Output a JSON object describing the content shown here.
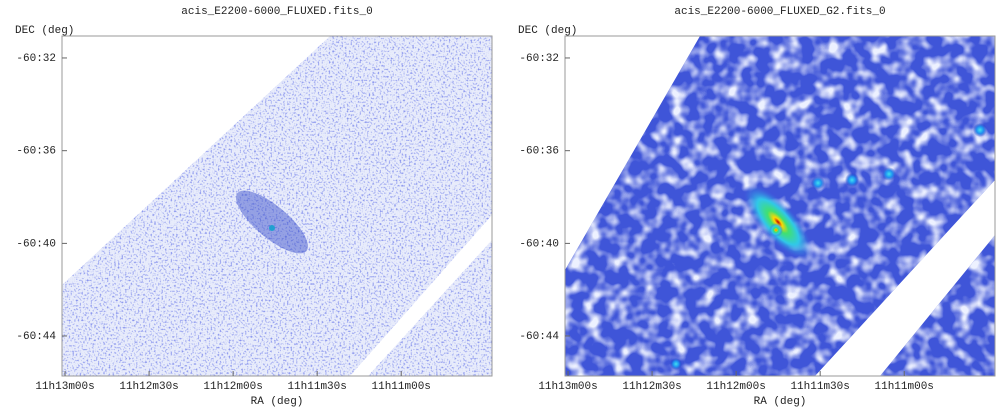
{
  "chart_data": [
    {
      "type": "image",
      "title": "acis_E2200-6000_FLUXED.fits_0",
      "xlabel": "RA (deg)",
      "ylabel": "DEC (deg)",
      "xlim": [
        168.2545,
        167.615
      ],
      "ylim": [
        -60.7621,
        -60.5175
      ],
      "xticks": [
        {
          "value": 168.25,
          "label": "11h13m00s"
        },
        {
          "value": 168.125,
          "label": "11h12m30s"
        },
        {
          "value": 168.0,
          "label": "11h12m00s"
        },
        {
          "value": 167.875,
          "label": "11h11m30s"
        },
        {
          "value": 167.75,
          "label": "11h11m00s"
        }
      ],
      "yticks": [
        {
          "value": -60.5333,
          "label": "-60:32"
        },
        {
          "value": -60.6,
          "label": "-60:36"
        },
        {
          "value": -60.6667,
          "label": "-60:40"
        },
        {
          "value": -60.7333,
          "label": "-60:44"
        }
      ]
    },
    {
      "type": "image",
      "title": "acis_E2200-6000_FLUXED_G2.fits_0",
      "xlabel": "RA (deg)",
      "ylabel": "DEC (deg)",
      "xlim": [
        168.2545,
        167.615
      ],
      "ylim": [
        -60.7621,
        -60.5175
      ],
      "xticks": [
        {
          "value": 168.25,
          "label": "11h13m00s"
        },
        {
          "value": 168.125,
          "label": "11h12m30s"
        },
        {
          "value": 168.0,
          "label": "11h12m00s"
        },
        {
          "value": 167.875,
          "label": "11h11m30s"
        },
        {
          "value": 167.75,
          "label": "11h11m00s"
        }
      ],
      "yticks": [
        {
          "value": -60.5333,
          "label": "-60:32"
        },
        {
          "value": -60.6,
          "label": "-60:36"
        },
        {
          "value": -60.6667,
          "label": "-60:40"
        },
        {
          "value": -60.7333,
          "label": "-60:44"
        }
      ]
    }
  ]
}
